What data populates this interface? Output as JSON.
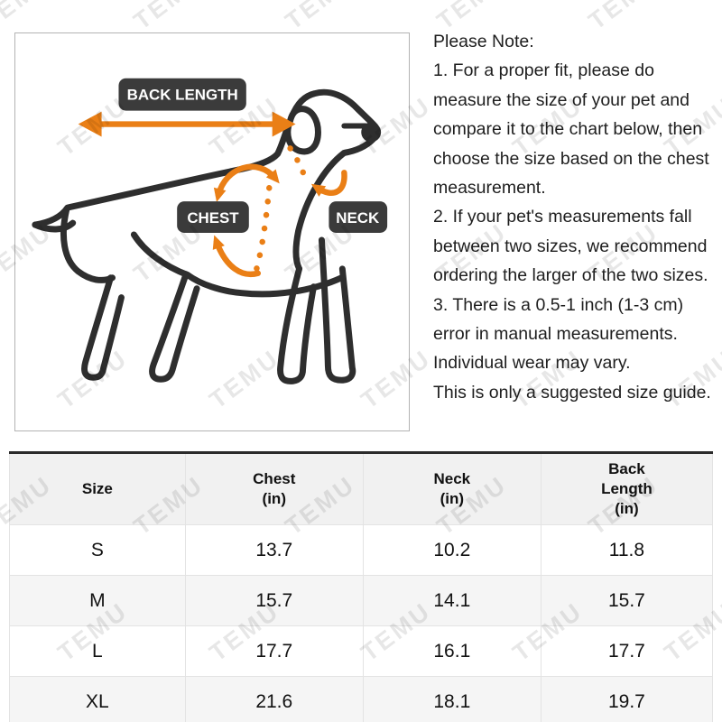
{
  "watermark": {
    "text": "TEMU"
  },
  "diagram": {
    "labels": {
      "back_length": "BACK LENGTH",
      "chest": "CHEST",
      "neck": "NECK"
    },
    "colors": {
      "arrow_orange": "#ea7f16",
      "label_bg": "#3b3b3b",
      "label_text": "#ffffff",
      "dog_outline": "#2e2e2e"
    }
  },
  "note": {
    "title": "Please Note:",
    "text": "1. For a proper fit, please do\nmeasure the size of your pet and\ncompare it to the chart below, then\nchoose the size based on the chest\nmeasurement.\n2. If your pet's measurements fall\nbetween two sizes, we recommend\nordering the larger of the two sizes.\n3. There is a 0.5-1 inch (1-3 cm)\nerror in manual measurements.\nIndividual wear may vary.\nThis is only a suggested size guide."
  },
  "table": {
    "headers": [
      "Size",
      "Chest\n(in)",
      "Neck\n(in)",
      "Back\nLength\n(in)"
    ],
    "rows": [
      [
        "S",
        "13.7",
        "10.2",
        "11.8"
      ],
      [
        "M",
        "15.7",
        "14.1",
        "15.7"
      ],
      [
        "L",
        "17.7",
        "16.1",
        "17.7"
      ],
      [
        "XL",
        "21.6",
        "18.1",
        "19.7"
      ]
    ]
  },
  "chart_data": {
    "type": "table",
    "columns": [
      "Size",
      "Chest (in)",
      "Neck (in)",
      "Back Length (in)"
    ],
    "rows": [
      [
        "S",
        13.7,
        10.2,
        11.8
      ],
      [
        "M",
        15.7,
        14.1,
        15.7
      ],
      [
        "L",
        17.7,
        16.1,
        17.7
      ],
      [
        "XL",
        21.6,
        18.1,
        19.7
      ]
    ]
  }
}
